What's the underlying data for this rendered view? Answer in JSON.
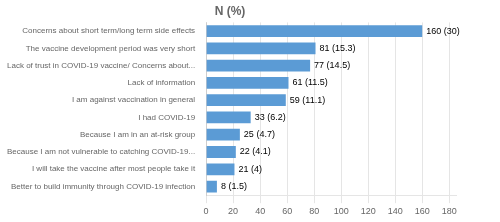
{
  "chart_data": {
    "type": "bar",
    "orientation": "horizontal",
    "title": "N (%)",
    "categories": [
      "Better to build immunity through COVID-19 infection",
      "I will take the vaccine after most people take it",
      "Because I am not vulnerable to catching COVID-19...",
      "Because I am in an at-risk group",
      "I had COVID-19",
      "I am against vaccination in general",
      "Lack of information",
      "Lack of trust in COVID-19 vaccine/ Concerns about...",
      "The vaccine development period was very short",
      "Concerns about short term/long term side effects"
    ],
    "values": [
      8,
      21,
      22,
      25,
      33,
      59,
      61,
      77,
      81,
      160
    ],
    "value_labels": [
      "8 (1.5)",
      "21 (4)",
      "22 (4.1)",
      "25 (4.7)",
      "33 (6.2)",
      "59 (11.1)",
      "61 (11.5)",
      "77 (14.5)",
      "81 (15.3)",
      "160 (30)"
    ],
    "data_labels": true,
    "color": "#5b9bd5",
    "xlim": [
      0,
      185
    ],
    "xticks": [
      0,
      20,
      40,
      60,
      80,
      100,
      120,
      140,
      160,
      180
    ],
    "grid": true
  }
}
